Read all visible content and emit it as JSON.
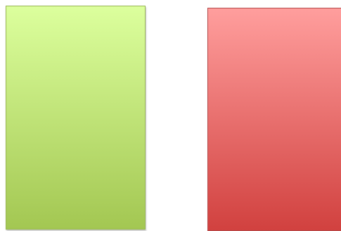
{
  "shapes": [
    {
      "id": "green-rectangle",
      "gradient_top": "#dcff9d",
      "gradient_bottom": "#a3c752",
      "border_color": "#97b552"
    },
    {
      "id": "red-rectangle",
      "gradient_top": "#ff9e9d",
      "gradient_bottom": "#d1413f",
      "border_color": "#b44a4a"
    }
  ]
}
